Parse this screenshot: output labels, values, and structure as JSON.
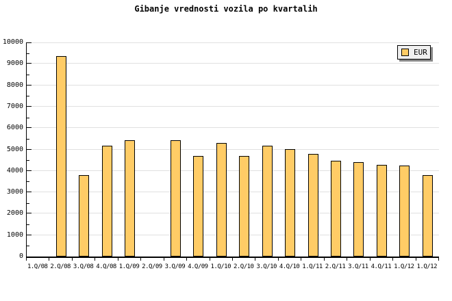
{
  "chart_data": {
    "type": "bar",
    "title": "Gibanje vrednosti vozila po kvartalih",
    "categories": [
      "1.Q/08",
      "2.Q/08",
      "3.Q/08",
      "4.Q/08",
      "1.Q/09",
      "2.Q/09",
      "3.Q/09",
      "4.Q/09",
      "1.Q/10",
      "2.Q/10",
      "3.Q/10",
      "4.Q/10",
      "1.Q/11",
      "2.Q/11",
      "3.Q/11",
      "4.Q/11",
      "1.Q/12",
      "1.Q/12"
    ],
    "series": [
      {
        "name": "EUR",
        "values": [
          null,
          9370,
          3800,
          5180,
          5430,
          null,
          5430,
          4700,
          5300,
          4700,
          5180,
          5020,
          4790,
          4470,
          4410,
          4280,
          4250,
          3800
        ]
      }
    ],
    "ylim": [
      0,
      10000
    ],
    "ytick_step": 1000,
    "ytick_minor_step": 500,
    "yticks": [
      "0",
      "1000",
      "2000",
      "3000",
      "4000",
      "5000",
      "6000",
      "7000",
      "8000",
      "9000",
      "10000"
    ],
    "xlabel": "",
    "ylabel": "",
    "grid": "horizontal-major",
    "legend_position": "top-right-inside",
    "colors": {
      "bar_fill": "#FFCC66",
      "bar_border": "#000000",
      "grid": "#E0E0E0",
      "axis": "#000000",
      "text": "#000000",
      "legend_bg": "#F0F0F0",
      "legend_shadow": "#888888",
      "background": "#FFFFFF"
    }
  }
}
